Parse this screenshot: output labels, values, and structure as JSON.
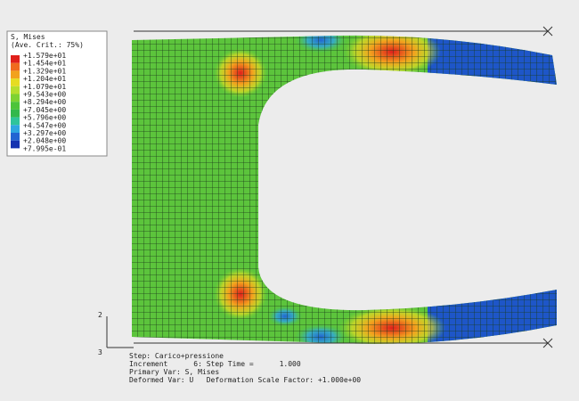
{
  "legend": {
    "title": "S, Mises",
    "subtitle": "(Ave. Crit.: 75%)",
    "labels": [
      "+1.579e+01",
      "+1.454e+01",
      "+1.329e+01",
      "+1.204e+01",
      "+1.079e+01",
      "+9.543e+00",
      "+8.294e+00",
      "+7.045e+00",
      "+5.796e+00",
      "+4.547e+00",
      "+3.297e+00",
      "+2.048e+00",
      "+7.995e-01"
    ],
    "colors": [
      "#e0201b",
      "#f06a1e",
      "#f2a21e",
      "#e6dc22",
      "#b6de2e",
      "#7ed232",
      "#4cc43a",
      "#32b84c",
      "#2ec49a",
      "#2ea6e0",
      "#2264d2",
      "#1432b0"
    ]
  },
  "triad": {
    "y": "2",
    "z": "3"
  },
  "info": [
    "Step: Carico+pressione",
    "Increment      6: Step Time =      1.000",
    "Primary Var: S, Mises",
    "Deformed Var: U   Deformation Scale Factor: +1.000e+00"
  ]
}
